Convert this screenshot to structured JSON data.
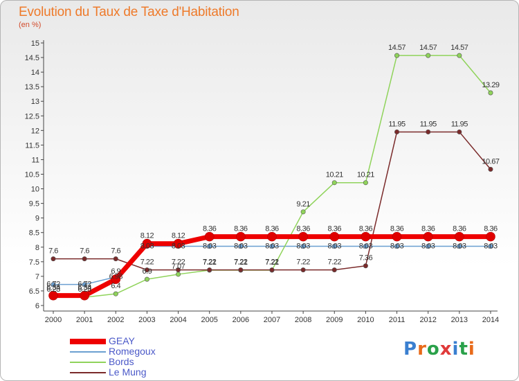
{
  "title": "Evolution du Taux de Taxe d'Habitation",
  "subtitle": "(en %)",
  "logo_text": "Proxiti",
  "logo_colors": [
    "#3a7fd0",
    "#e86a1a",
    "#2aa14a",
    "#e03a3a",
    "#3a7fd0",
    "#2aa14a",
    "#e86a1a"
  ],
  "chart_data": {
    "type": "line",
    "x": [
      "2000",
      "2001",
      "2002",
      "2003",
      "2004",
      "2005",
      "2006",
      "2007",
      "2008",
      "2009",
      "2010",
      "2011",
      "2012",
      "2013",
      "2014"
    ],
    "ylim": [
      6,
      15
    ],
    "yticks": [
      "6",
      "6.5",
      "7",
      "7.5",
      "8",
      "8.5",
      "9",
      "9.5",
      "10",
      "10.5",
      "11",
      "11.5",
      "12",
      "12.5",
      "13",
      "13.5",
      "14",
      "14.5",
      "15"
    ],
    "grid": false,
    "legend_position": "bottom-left",
    "series": [
      {
        "name": "GEAY",
        "color": "#ee0000",
        "width": 7,
        "values": [
          6.34,
          6.34,
          6.9,
          8.12,
          8.12,
          8.36,
          8.36,
          8.36,
          8.36,
          8.36,
          8.36,
          8.36,
          8.36,
          8.36,
          8.36
        ],
        "labels": [
          "6.34",
          "6.34",
          "6.9",
          "8.12",
          "8.12",
          "8.36",
          "8.36",
          "8.36",
          "8.36",
          "8.36",
          "8.36",
          "8.36",
          "8.36",
          "8.36",
          "8.36"
        ]
      },
      {
        "name": "Romegoux",
        "color": "#6b9fd1",
        "width": 1.5,
        "values": [
          6.72,
          6.72,
          6.98,
          8.03,
          8.03,
          8.03,
          8.03,
          8.03,
          8.03,
          8.03,
          8.03,
          8.03,
          8.03,
          8.03,
          8.03
        ],
        "labels": [
          "6.72",
          "6.72",
          "6.98",
          "8.03",
          "8.03",
          "8.03",
          "8.03",
          "8.03",
          "8.03",
          "8.03",
          "8.03",
          "8.03",
          "8.03",
          "8.03",
          "8.03"
        ]
      },
      {
        "name": "Bords",
        "color": "#8fd35a",
        "width": 1.5,
        "values": [
          6.28,
          6.28,
          6.4,
          6.9,
          7.07,
          7.21,
          7.21,
          7.21,
          9.21,
          10.21,
          10.21,
          14.57,
          14.57,
          14.57,
          13.29
        ],
        "labels": [
          "6.28",
          "6.28",
          "6.4",
          "6.9",
          "7.07",
          "7.21",
          "7.21",
          "7.21",
          "9.21",
          "10.21",
          "10.21",
          "14.57",
          "14.57",
          "14.57",
          "13.29"
        ]
      },
      {
        "name": "Le Mung",
        "color": "#7a2a2a",
        "width": 1.5,
        "values": [
          7.6,
          7.6,
          7.6,
          7.22,
          7.22,
          7.22,
          7.22,
          7.22,
          7.22,
          7.22,
          7.36,
          11.95,
          11.95,
          11.95,
          10.67
        ],
        "labels": [
          "7.6",
          "7.6",
          "7.6",
          "7.22",
          "7.22",
          "7.22",
          "7.22",
          "7.22",
          "7.22",
          "7.22",
          "7.36",
          "11.95",
          "11.95",
          "11.95",
          "10.67"
        ]
      }
    ]
  }
}
